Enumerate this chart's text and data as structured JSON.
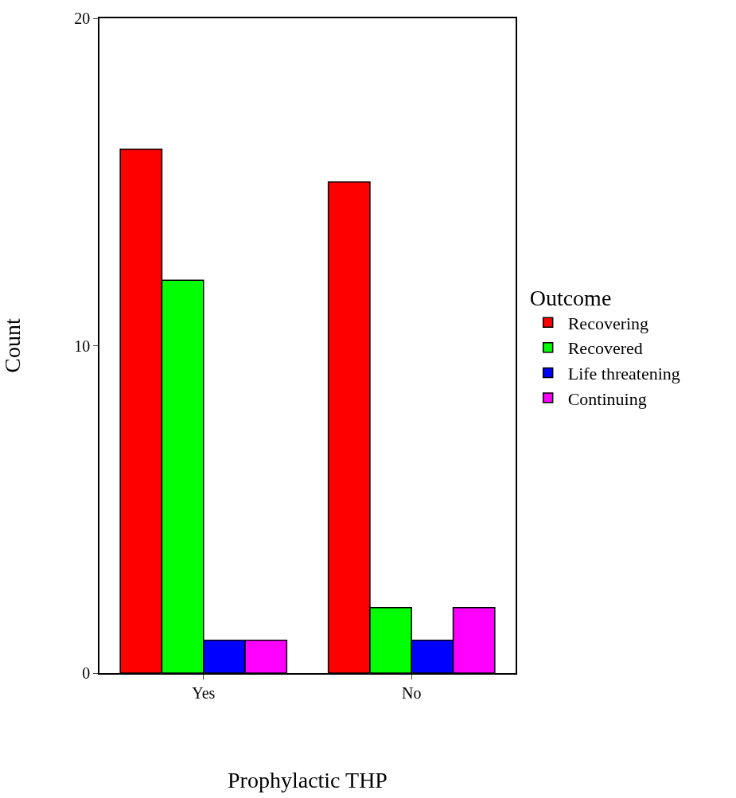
{
  "chart_data": {
    "type": "bar",
    "xlabel": "Prophylactic THP",
    "ylabel": "Count",
    "legend_title": "Outcome",
    "categories": [
      "Yes",
      "No"
    ],
    "series": [
      {
        "name": "Recovering",
        "color": "#ff0000",
        "values": [
          16,
          15
        ]
      },
      {
        "name": "Recovered",
        "color": "#00ff00",
        "values": [
          12,
          2
        ]
      },
      {
        "name": "Life threatening",
        "color": "#0000ff",
        "values": [
          1,
          1
        ]
      },
      {
        "name": "Continuing",
        "color": "#ff00ff",
        "values": [
          1,
          2
        ]
      }
    ],
    "ylim": [
      0,
      20
    ],
    "yticks": [
      0,
      10,
      20
    ],
    "legend": "right"
  }
}
